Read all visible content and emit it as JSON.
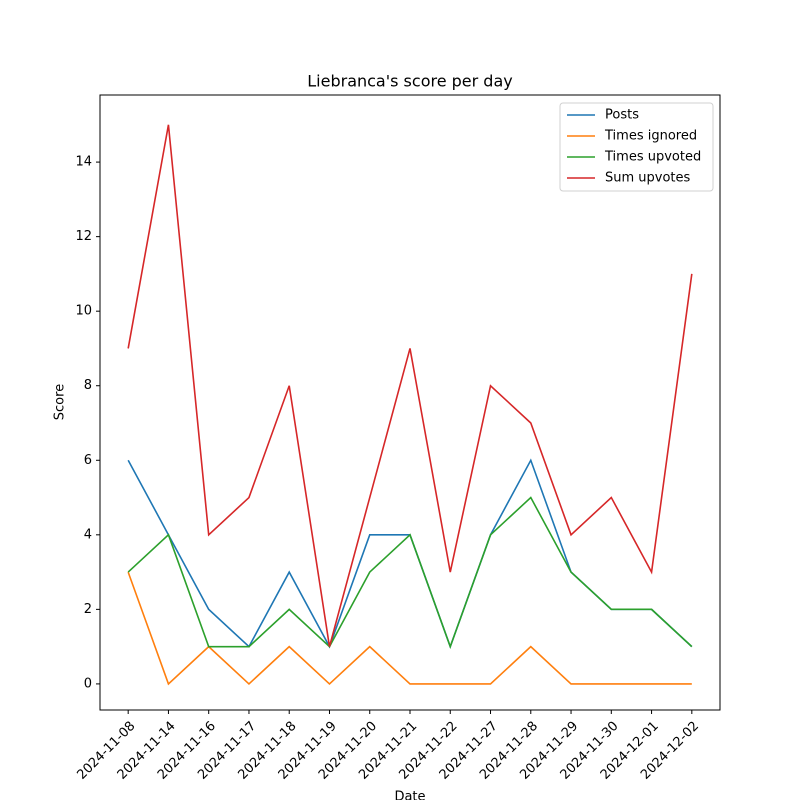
{
  "chart_data": {
    "type": "line",
    "title": "Liebranca's score per day",
    "xlabel": "Date",
    "ylabel": "Score",
    "categories": [
      "2024-11-08",
      "2024-11-14",
      "2024-11-16",
      "2024-11-17",
      "2024-11-18",
      "2024-11-19",
      "2024-11-20",
      "2024-11-21",
      "2024-11-22",
      "2024-11-27",
      "2024-11-28",
      "2024-11-29",
      "2024-11-30",
      "2024-12-01",
      "2024-12-02"
    ],
    "series": [
      {
        "name": "Posts",
        "color": "#1f77b4",
        "values": [
          6,
          4,
          2,
          1,
          3,
          1,
          4,
          4,
          1,
          4,
          6,
          3,
          2,
          2,
          1
        ]
      },
      {
        "name": "Times ignored",
        "color": "#ff7f0e",
        "values": [
          3,
          0,
          1,
          0,
          1,
          0,
          1,
          0,
          0,
          0,
          1,
          0,
          0,
          0,
          0
        ]
      },
      {
        "name": "Times upvoted",
        "color": "#2ca02c",
        "values": [
          3,
          4,
          1,
          1,
          2,
          1,
          3,
          4,
          1,
          4,
          5,
          3,
          2,
          2,
          1
        ]
      },
      {
        "name": "Sum upvotes",
        "color": "#d62728",
        "values": [
          9,
          15,
          4,
          5,
          8,
          1,
          5,
          9,
          3,
          8,
          7,
          4,
          5,
          3,
          11
        ]
      }
    ],
    "ylim": [
      -0.7,
      15.8
    ],
    "yticks": [
      0,
      2,
      4,
      6,
      8,
      10,
      12,
      14
    ],
    "legend": "upper right",
    "grid": false
  }
}
